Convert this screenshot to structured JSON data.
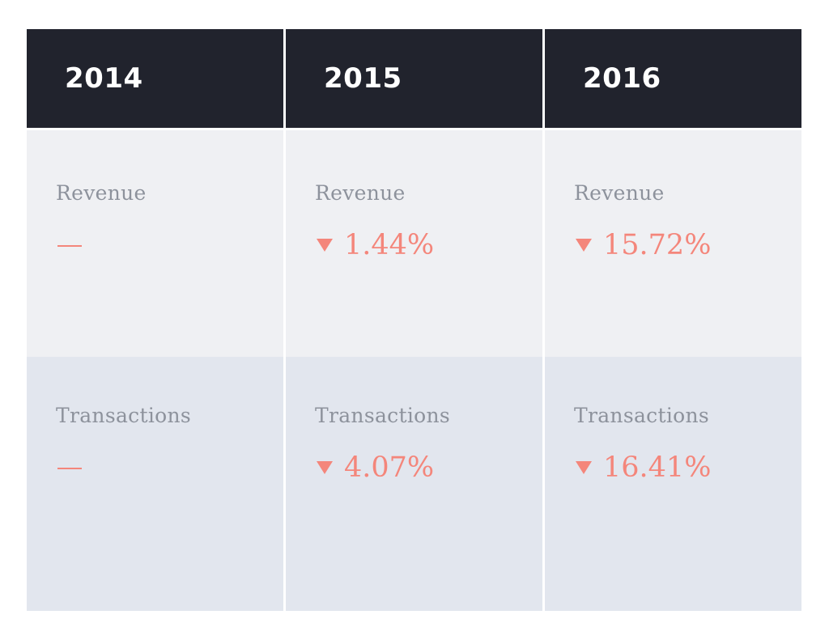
{
  "chart_data": {
    "type": "table",
    "columns": [
      "2014",
      "2015",
      "2016"
    ],
    "rows": [
      {
        "label": "Revenue",
        "cells": [
          {
            "year": "2014",
            "label": "Revenue",
            "value": "—",
            "direction": "none"
          },
          {
            "year": "2015",
            "label": "Revenue",
            "value": "1.44%",
            "direction": "down"
          },
          {
            "year": "2016",
            "label": "Revenue",
            "value": "15.72%",
            "direction": "down"
          }
        ]
      },
      {
        "label": "Transactions",
        "cells": [
          {
            "year": "2014",
            "label": "Transactions",
            "value": "—",
            "direction": "none"
          },
          {
            "year": "2015",
            "label": "Transactions",
            "value": "4.07%",
            "direction": "down"
          },
          {
            "year": "2016",
            "label": "Transactions",
            "value": "16.41%",
            "direction": "down"
          }
        ]
      }
    ]
  },
  "colors": {
    "header_bg": "#21232d",
    "header_text": "#ffffff",
    "revenue_row_bg": "#eff0f3",
    "transactions_row_bg": "#e2e6ee",
    "label_text": "#8d929c",
    "negative_value": "#f4867b"
  },
  "icons": {
    "down": "down-arrow-icon"
  }
}
